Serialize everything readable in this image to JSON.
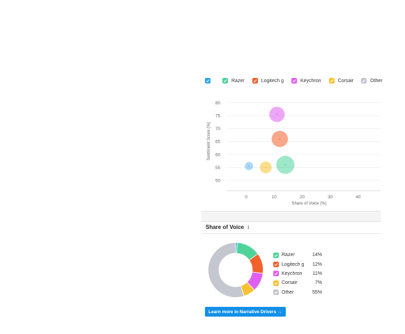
{
  "colors": {
    "all": "#2aa4f4",
    "razer": "#4fd39a",
    "logitech": "#f2602c",
    "keychron": "#e05ff0",
    "corsair": "#f8c232",
    "other": "#c4c7cf",
    "unlabeled": "#6ab8f0",
    "button": "#1290e8"
  },
  "legend": {
    "items": [
      {
        "label": "Razer",
        "color": "#4fd39a"
      },
      {
        "label": "Logitech g",
        "color": "#f2602c"
      },
      {
        "label": "Keychron",
        "color": "#e05ff0"
      },
      {
        "label": "Corsair",
        "color": "#f8c232"
      },
      {
        "label": "Other",
        "color": "#c4c7cf"
      }
    ]
  },
  "chart_data": [
    {
      "type": "scatter",
      "title": "",
      "xlabel": "Share of Voice (%)",
      "ylabel": "Sentiment Score (%)",
      "xlim": [
        -7,
        48
      ],
      "ylim": [
        46,
        81
      ],
      "x_ticks": [
        0,
        10,
        20,
        30,
        40
      ],
      "y_ticks": [
        50,
        55,
        60,
        65,
        70,
        75,
        80
      ],
      "grid": true,
      "points": [
        {
          "x": 1,
          "y": 55.5,
          "size": 3,
          "color": "#6ab8f0"
        },
        {
          "x": 7,
          "y": 55,
          "size": 7,
          "color": "#f8c232"
        },
        {
          "x": 11,
          "y": 75.5,
          "size": 11,
          "color": "#e05ff0"
        },
        {
          "x": 12,
          "y": 66,
          "size": 12,
          "color": "#f2602c"
        },
        {
          "x": 14,
          "y": 56,
          "size": 14,
          "color": "#4fd39a"
        }
      ]
    },
    {
      "type": "pie",
      "donut": true,
      "slices": [
        {
          "label": "",
          "value": 1,
          "color": "#2aa4f4"
        },
        {
          "label": "Razer",
          "value": 14,
          "display": "14%",
          "color": "#4fd39a"
        },
        {
          "label": "Logitech g",
          "value": 12,
          "display": "12%",
          "color": "#f2602c"
        },
        {
          "label": "Keychron",
          "value": 11,
          "display": "11%",
          "color": "#e05ff0"
        },
        {
          "label": "Corsair",
          "value": 7,
          "display": "7%",
          "color": "#f8c232"
        },
        {
          "label": "Other",
          "value": 55,
          "display": "55%",
          "color": "#c4c7cf"
        }
      ]
    }
  ],
  "sov": {
    "title": "Share of Voice",
    "info_icon": "info-icon",
    "info_glyph": "ℹ"
  },
  "cta": {
    "label": "Learn more in Narrative Drivers →"
  }
}
